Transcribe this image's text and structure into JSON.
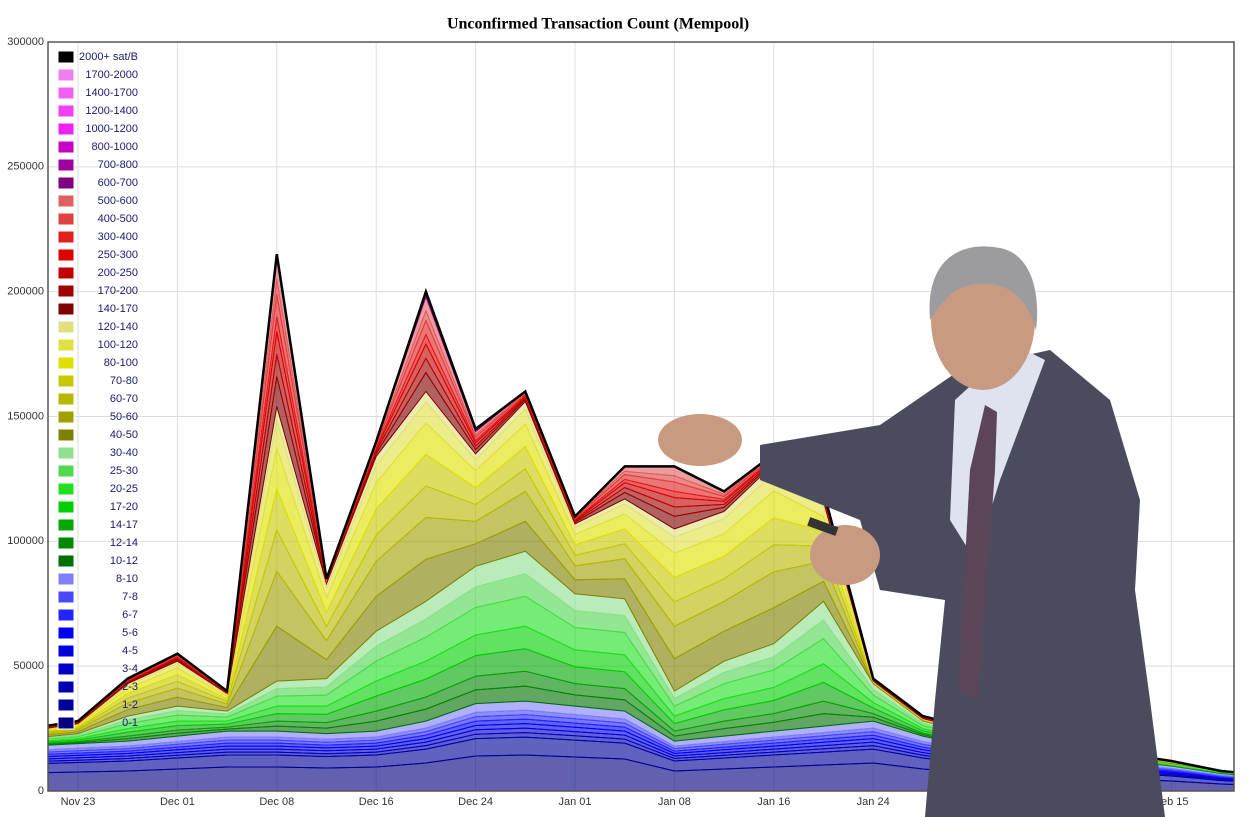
{
  "chart_data": {
    "type": "stacked_area",
    "title": "Unconfirmed Transaction Count (Mempool)",
    "categories": [
      null,
      "Nov 23",
      null,
      "Dec 01",
      null,
      "Dec 08",
      null,
      "Dec 16",
      null,
      "Dec 24",
      null,
      "Jan 01",
      null,
      "Jan 08",
      null,
      "Jan 16",
      null,
      "Jan 24",
      null,
      null,
      null,
      null,
      null,
      "Feb 15",
      null,
      null
    ],
    "ylim": [
      0,
      300000
    ],
    "yticks": [
      0,
      50000,
      100000,
      150000,
      200000,
      250000,
      300000
    ],
    "grid": true,
    "legend": "top-left",
    "series": [
      {
        "name": "0-1",
        "color": "#000080",
        "values": [
          7200,
          7600,
          8000,
          8800,
          9600,
          9600,
          9200,
          9600,
          11200,
          14000,
          14400,
          13600,
          12800,
          8000,
          8800,
          9600,
          10400,
          11200,
          8800,
          7200,
          6000,
          5600,
          4800,
          4000,
          2800,
          2000
        ]
      },
      {
        "name": "1-2",
        "color": "#00009a",
        "values": [
          3600,
          3800,
          4000,
          4400,
          4800,
          4800,
          4600,
          4800,
          5600,
          7000,
          7200,
          6800,
          6400,
          4000,
          4400,
          4800,
          5200,
          5600,
          4400,
          3600,
          3000,
          2800,
          2400,
          2000,
          1400,
          1000
        ]
      },
      {
        "name": "2-3",
        "color": "#0000b0",
        "values": [
          900,
          950,
          1000,
          1100,
          1200,
          1200,
          1150,
          1200,
          1400,
          1750,
          1800,
          1700,
          1600,
          1000,
          1100,
          1200,
          1300,
          1400,
          1100,
          900,
          750,
          700,
          600,
          500,
          350,
          250
        ]
      },
      {
        "name": "3-4",
        "color": "#0000c8",
        "values": [
          900,
          950,
          1000,
          1100,
          1200,
          1200,
          1150,
          1200,
          1400,
          1750,
          1800,
          1700,
          1600,
          1000,
          1100,
          1200,
          1300,
          1400,
          1100,
          900,
          750,
          700,
          600,
          500,
          350,
          250
        ]
      },
      {
        "name": "4-5",
        "color": "#0000e0",
        "values": [
          900,
          950,
          1000,
          1100,
          1200,
          1200,
          1150,
          1200,
          1400,
          1750,
          1800,
          1700,
          1600,
          1000,
          1100,
          1200,
          1300,
          1400,
          1100,
          900,
          750,
          700,
          600,
          500,
          350,
          250
        ]
      },
      {
        "name": "5-6",
        "color": "#0000f8",
        "values": [
          900,
          950,
          1000,
          1100,
          1200,
          1200,
          1150,
          1200,
          1400,
          1750,
          1800,
          1700,
          1600,
          1000,
          1100,
          1200,
          1300,
          1400,
          1100,
          900,
          750,
          700,
          600,
          500,
          350,
          250
        ]
      },
      {
        "name": "6-7",
        "color": "#2424ff",
        "values": [
          900,
          950,
          1000,
          1100,
          1200,
          1200,
          1150,
          1200,
          1400,
          1750,
          1800,
          1700,
          1600,
          1000,
          1100,
          1200,
          1300,
          1400,
          1100,
          900,
          750,
          700,
          600,
          500,
          350,
          250
        ]
      },
      {
        "name": "7-8",
        "color": "#4848ff",
        "values": [
          900,
          950,
          1000,
          1100,
          1200,
          1200,
          1150,
          1200,
          1400,
          1750,
          1800,
          1700,
          1600,
          1000,
          1100,
          1200,
          1300,
          1400,
          1100,
          900,
          750,
          700,
          600,
          500,
          350,
          250
        ]
      },
      {
        "name": "8-10",
        "color": "#8080ff",
        "values": [
          1800,
          1900,
          2000,
          2200,
          2400,
          2400,
          2300,
          2400,
          2800,
          3500,
          3600,
          3400,
          3200,
          2000,
          2200,
          2400,
          2600,
          2800,
          2200,
          1800,
          1500,
          1400,
          1200,
          1000,
          700,
          500
        ]
      },
      {
        "name": "10-12",
        "color": "#007000",
        "values": [
          300,
          400,
          1000,
          1200,
          800,
          2000,
          2200,
          4000,
          4800,
          5500,
          6000,
          4500,
          4500,
          2000,
          3000,
          3500,
          5000,
          1500,
          600,
          500,
          400,
          300,
          200,
          100,
          100,
          100
        ]
      },
      {
        "name": "12-14",
        "color": "#008800",
        "values": [
          300,
          400,
          1000,
          1200,
          800,
          2000,
          2200,
          4000,
          4800,
          5500,
          6000,
          4500,
          4500,
          2000,
          3000,
          3500,
          5000,
          1500,
          600,
          500,
          400,
          300,
          200,
          100,
          100,
          100
        ]
      },
      {
        "name": "14-17",
        "color": "#00a800",
        "values": [
          450,
          600,
          1500,
          1800,
          1200,
          3000,
          3300,
          6000,
          7200,
          8250,
          9000,
          6750,
          6750,
          3000,
          4500,
          5250,
          7500,
          2250,
          900,
          750,
          600,
          450,
          300,
          150,
          150,
          150
        ]
      },
      {
        "name": "17-20",
        "color": "#00d000",
        "values": [
          450,
          600,
          1500,
          1800,
          1200,
          3000,
          3300,
          6000,
          7200,
          8250,
          9000,
          6750,
          6750,
          3000,
          4500,
          5250,
          7500,
          2250,
          900,
          750,
          600,
          450,
          300,
          150,
          150,
          150
        ]
      },
      {
        "name": "20-25",
        "color": "#20e020",
        "values": [
          600,
          800,
          2000,
          2400,
          1600,
          4000,
          4400,
          8000,
          9600,
          11000,
          12000,
          9000,
          9000,
          4000,
          6000,
          7000,
          10000,
          3000,
          1200,
          1000,
          800,
          600,
          400,
          200,
          200,
          200
        ]
      },
      {
        "name": "25-30",
        "color": "#50d850",
        "values": [
          450,
          600,
          1500,
          1800,
          1200,
          3000,
          3300,
          6000,
          7200,
          8250,
          9000,
          6750,
          6750,
          3000,
          4500,
          5250,
          7500,
          2250,
          900,
          750,
          600,
          450,
          300,
          150,
          150,
          150
        ]
      },
      {
        "name": "30-40",
        "color": "#90e090",
        "values": [
          450,
          600,
          1500,
          1800,
          1200,
          3000,
          3300,
          6000,
          7200,
          8250,
          9000,
          6750,
          6750,
          3000,
          4500,
          5250,
          7500,
          2250,
          900,
          750,
          600,
          450,
          300,
          150,
          150,
          150
        ]
      },
      {
        "name": "40-50",
        "color": "#808000",
        "values": [
          600,
          800,
          2600,
          3600,
          1400,
          22000,
          7600,
          14000,
          16800,
          9000,
          12000,
          5600,
          8000,
          13000,
          12000,
          14400,
          8000,
          200,
          200,
          200,
          200,
          200,
          200,
          200,
          0,
          0
        ]
      },
      {
        "name": "50-60",
        "color": "#a0a000",
        "values": [
          600,
          800,
          2600,
          3600,
          1400,
          22000,
          7600,
          14000,
          16800,
          9000,
          12000,
          5600,
          8000,
          13000,
          12000,
          14400,
          8000,
          200,
          200,
          200,
          200,
          200,
          200,
          200,
          0,
          0
        ]
      },
      {
        "name": "60-70",
        "color": "#b8b800",
        "values": [
          450,
          600,
          1950,
          2700,
          1050,
          16500,
          5700,
          10500,
          12600,
          6750,
          9000,
          4200,
          6000,
          9750,
          9000,
          10800,
          6000,
          150,
          150,
          150,
          150,
          150,
          150,
          150,
          0,
          0
        ]
      },
      {
        "name": "70-80",
        "color": "#c8c800",
        "values": [
          450,
          600,
          1950,
          2700,
          1050,
          16500,
          5700,
          10500,
          12600,
          6750,
          9000,
          4200,
          6000,
          9750,
          9000,
          10800,
          6000,
          150,
          150,
          150,
          150,
          150,
          150,
          150,
          0,
          0
        ]
      },
      {
        "name": "80-100",
        "color": "#e0e000",
        "values": [
          450,
          600,
          1950,
          2700,
          1050,
          16500,
          5700,
          10500,
          12600,
          6750,
          9000,
          4200,
          6000,
          9750,
          9000,
          10800,
          6000,
          150,
          150,
          150,
          150,
          150,
          150,
          150,
          0,
          0
        ]
      },
      {
        "name": "100-120",
        "color": "#e0e040",
        "values": [
          300,
          400,
          1300,
          1800,
          700,
          11000,
          3800,
          7000,
          8400,
          4500,
          6000,
          2800,
          4000,
          6500,
          6000,
          7200,
          4000,
          100,
          100,
          100,
          100,
          100,
          100,
          100,
          0,
          0
        ]
      },
      {
        "name": "120-140",
        "color": "#e0e080",
        "values": [
          150,
          200,
          650,
          900,
          350,
          5500,
          1900,
          3500,
          4200,
          2250,
          3000,
          1400,
          2000,
          3250,
          3000,
          3600,
          2000,
          50,
          50,
          50,
          50,
          50,
          50,
          50,
          0,
          0
        ]
      },
      {
        "name": "140-170",
        "color": "#800000",
        "values": [
          200,
          200,
          400,
          600,
          200,
          12000,
          400,
          1200,
          7600,
          1800,
          800,
          600,
          2600,
          5000,
          1600,
          800,
          800,
          200,
          200,
          200,
          0,
          0,
          0,
          0,
          0,
          0
        ]
      },
      {
        "name": "170-200",
        "color": "#a00000",
        "values": [
          150,
          150,
          300,
          450,
          150,
          9000,
          300,
          900,
          5700,
          1350,
          600,
          450,
          1950,
          3750,
          1200,
          600,
          600,
          150,
          150,
          150,
          0,
          0,
          0,
          0,
          0,
          0
        ]
      },
      {
        "name": "200-250",
        "color": "#c00000",
        "values": [
          150,
          150,
          300,
          450,
          150,
          9000,
          300,
          900,
          5700,
          1350,
          600,
          450,
          1950,
          3750,
          1200,
          600,
          600,
          150,
          150,
          150,
          0,
          0,
          0,
          0,
          0,
          0
        ]
      },
      {
        "name": "250-300",
        "color": "#e00000",
        "values": [
          100,
          100,
          200,
          300,
          100,
          6000,
          200,
          600,
          3800,
          900,
          400,
          300,
          1300,
          2500,
          800,
          400,
          400,
          100,
          100,
          100,
          0,
          0,
          0,
          0,
          0,
          0
        ]
      },
      {
        "name": "300-400",
        "color": "#e02020",
        "values": [
          150,
          150,
          300,
          450,
          150,
          9000,
          300,
          900,
          5700,
          1350,
          600,
          450,
          1950,
          3750,
          1200,
          600,
          600,
          150,
          150,
          150,
          0,
          0,
          0,
          0,
          0,
          0
        ]
      },
      {
        "name": "400-500",
        "color": "#e04040",
        "values": [
          100,
          100,
          200,
          300,
          100,
          6000,
          200,
          600,
          3800,
          900,
          400,
          300,
          1300,
          2500,
          800,
          400,
          400,
          100,
          100,
          100,
          0,
          0,
          0,
          0,
          0,
          0
        ]
      },
      {
        "name": "500-600",
        "color": "#e06060",
        "values": [
          150,
          150,
          300,
          450,
          150,
          9000,
          300,
          900,
          5700,
          1350,
          600,
          450,
          1950,
          3750,
          1200,
          600,
          600,
          150,
          150,
          150,
          0,
          0,
          0,
          0,
          0,
          0
        ]
      },
      {
        "name": "600-700",
        "color": "#800080",
        "values": [
          0,
          0,
          0,
          0,
          0,
          500,
          0,
          0,
          1000,
          500,
          0,
          0,
          0,
          0,
          0,
          0,
          0,
          0,
          0,
          0,
          0,
          0,
          0,
          0,
          0,
          0
        ]
      },
      {
        "name": "700-800",
        "color": "#a000a0",
        "values": [
          0,
          0,
          0,
          0,
          0,
          300,
          0,
          0,
          600,
          300,
          0,
          0,
          0,
          0,
          0,
          0,
          0,
          0,
          0,
          0,
          0,
          0,
          0,
          0,
          0,
          0
        ]
      },
      {
        "name": "800-1000",
        "color": "#c800c8",
        "values": [
          0,
          0,
          0,
          0,
          0,
          200,
          0,
          0,
          400,
          200,
          0,
          0,
          0,
          0,
          0,
          0,
          0,
          0,
          0,
          0,
          0,
          0,
          0,
          0,
          0,
          0
        ]
      },
      {
        "name": "1000-1200",
        "color": "#f020f0",
        "values": [
          0,
          0,
          0,
          0,
          0,
          0,
          0,
          0,
          0,
          0,
          0,
          0,
          0,
          0,
          0,
          0,
          0,
          0,
          0,
          0,
          0,
          0,
          0,
          0,
          0,
          0
        ]
      },
      {
        "name": "1200-1400",
        "color": "#f040f0",
        "values": [
          0,
          0,
          0,
          0,
          0,
          0,
          0,
          0,
          0,
          0,
          0,
          0,
          0,
          0,
          0,
          0,
          0,
          0,
          0,
          0,
          0,
          0,
          0,
          0,
          0,
          0
        ]
      },
      {
        "name": "1400-1700",
        "color": "#f060f0",
        "values": [
          0,
          0,
          0,
          0,
          0,
          0,
          0,
          0,
          0,
          0,
          0,
          0,
          0,
          0,
          0,
          0,
          0,
          0,
          0,
          0,
          0,
          0,
          0,
          0,
          0,
          0
        ]
      },
      {
        "name": "1700-2000",
        "color": "#f080f0",
        "values": [
          0,
          0,
          0,
          0,
          0,
          0,
          0,
          0,
          0,
          0,
          0,
          0,
          0,
          0,
          0,
          0,
          0,
          0,
          0,
          0,
          0,
          0,
          0,
          0,
          0,
          0
        ]
      },
      {
        "name": "2000+ sat/B",
        "color": "#000000",
        "values": [
          0,
          0,
          0,
          0,
          0,
          0,
          0,
          0,
          0,
          0,
          0,
          0,
          0,
          0,
          0,
          0,
          0,
          0,
          0,
          0,
          0,
          0,
          0,
          0,
          0,
          0
        ]
      }
    ]
  }
}
